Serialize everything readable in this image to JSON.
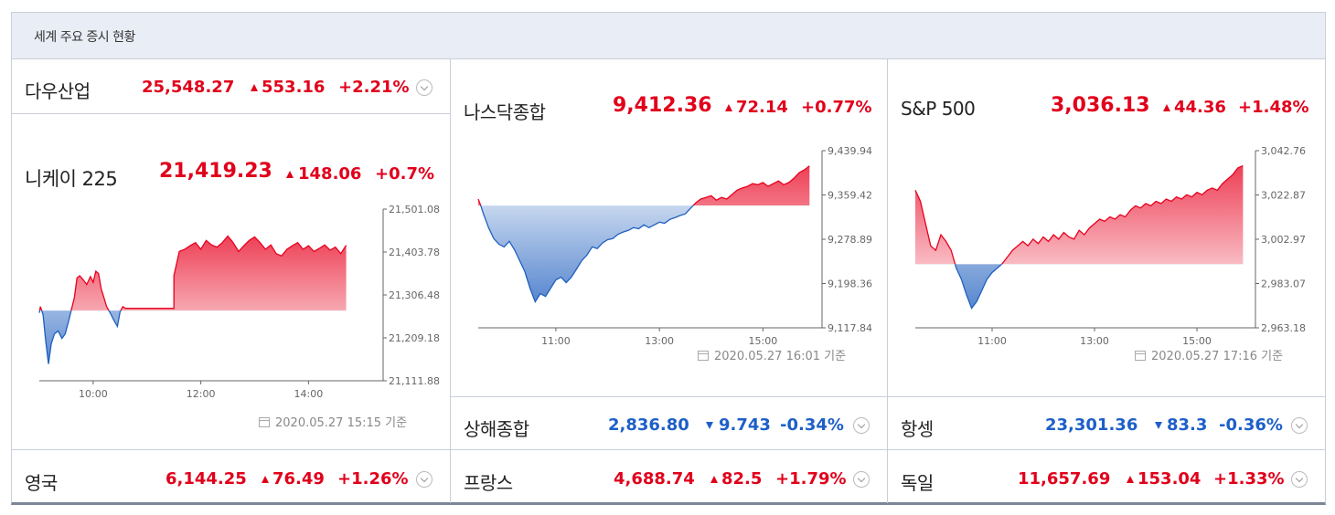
{
  "title": "세계 주요 증시 현황",
  "timestamp_suffix": "기준",
  "small": {
    "dow": {
      "name": "다우산업",
      "price": "25,548.27",
      "change": "553.16",
      "pct": "+2.21%",
      "dir": "up"
    },
    "shanghai": {
      "name": "상해종합",
      "price": "2,836.80",
      "change": "9.743",
      "pct": "-0.34%",
      "dir": "down"
    },
    "hangseng": {
      "name": "항셍",
      "price": "23,301.36",
      "change": "83.3",
      "pct": "-0.36%",
      "dir": "down"
    },
    "uk": {
      "name": "영국",
      "price": "6,144.25",
      "change": "76.49",
      "pct": "+1.26%",
      "dir": "up"
    },
    "france": {
      "name": "프랑스",
      "price": "4,688.74",
      "change": "82.5",
      "pct": "+1.79%",
      "dir": "up"
    },
    "germany": {
      "name": "독일",
      "price": "11,657.69",
      "change": "153.04",
      "pct": "+1.33%",
      "dir": "up"
    }
  },
  "big": {
    "nikkei": {
      "name": "니케이 225",
      "price": "21,419.23",
      "change": "148.06",
      "pct": "+0.7%",
      "dir": "up",
      "timestamp": "2020.05.27 15:15"
    },
    "nasdaq": {
      "name": "나스닥종합",
      "price": "9,412.36",
      "change": "72.14",
      "pct": "+0.77%",
      "dir": "up",
      "timestamp": "2020.05.27 16:01"
    },
    "sp500": {
      "name": "S&P 500",
      "price": "3,036.13",
      "change": "44.36",
      "pct": "+1.48%",
      "dir": "up",
      "timestamp": "2020.05.27 17:16"
    }
  },
  "chart_data": [
    {
      "type": "line",
      "id": "nikkei",
      "colors": {
        "up": "#e8001e",
        "down": "#1f5fbf"
      },
      "baseline": 21271.17,
      "ylim": [
        21111.88,
        21501.08
      ],
      "yticks": [
        "21,501.08",
        "21,403.78",
        "21,306.48",
        "21,209.18",
        "21,111.88"
      ],
      "xlim": [
        9.0,
        15.25
      ],
      "xticks": [
        {
          "x": 10,
          "label": "10:00"
        },
        {
          "x": 12,
          "label": "12:00"
        },
        {
          "x": 14,
          "label": "14:00"
        }
      ],
      "points": [
        [
          9.0,
          21266
        ],
        [
          9.02,
          21280
        ],
        [
          9.07,
          21262
        ],
        [
          9.12,
          21200
        ],
        [
          9.17,
          21150
        ],
        [
          9.22,
          21195
        ],
        [
          9.28,
          21218
        ],
        [
          9.35,
          21225
        ],
        [
          9.42,
          21208
        ],
        [
          9.48,
          21218
        ],
        [
          9.55,
          21250
        ],
        [
          9.6,
          21275
        ],
        [
          9.65,
          21300
        ],
        [
          9.7,
          21345
        ],
        [
          9.75,
          21350
        ],
        [
          9.82,
          21340
        ],
        [
          9.88,
          21330
        ],
        [
          9.95,
          21348
        ],
        [
          10.0,
          21335
        ],
        [
          10.05,
          21360
        ],
        [
          10.1,
          21355
        ],
        [
          10.15,
          21320
        ],
        [
          10.2,
          21300
        ],
        [
          10.25,
          21280
        ],
        [
          10.32,
          21265
        ],
        [
          10.38,
          21250
        ],
        [
          10.45,
          21235
        ],
        [
          10.5,
          21268
        ],
        [
          10.55,
          21280
        ],
        [
          10.6,
          21276
        ],
        [
          10.8,
          21276
        ],
        [
          11.0,
          21276
        ],
        [
          11.2,
          21276
        ],
        [
          11.4,
          21276
        ],
        [
          11.5,
          21276
        ],
        [
          11.5,
          21350
        ],
        [
          11.6,
          21405
        ],
        [
          11.7,
          21410
        ],
        [
          11.8,
          21418
        ],
        [
          11.9,
          21425
        ],
        [
          12.0,
          21410
        ],
        [
          12.1,
          21430
        ],
        [
          12.2,
          21420
        ],
        [
          12.3,
          21415
        ],
        [
          12.4,
          21425
        ],
        [
          12.5,
          21440
        ],
        [
          12.6,
          21425
        ],
        [
          12.7,
          21405
        ],
        [
          12.8,
          21418
        ],
        [
          12.9,
          21430
        ],
        [
          13.0,
          21438
        ],
        [
          13.1,
          21425
        ],
        [
          13.2,
          21410
        ],
        [
          13.3,
          21420
        ],
        [
          13.4,
          21400
        ],
        [
          13.5,
          21395
        ],
        [
          13.6,
          21410
        ],
        [
          13.7,
          21418
        ],
        [
          13.8,
          21425
        ],
        [
          13.9,
          21410
        ],
        [
          14.0,
          21418
        ],
        [
          14.1,
          21405
        ],
        [
          14.2,
          21412
        ],
        [
          14.3,
          21420
        ],
        [
          14.4,
          21408
        ],
        [
          14.5,
          21415
        ],
        [
          14.6,
          21400
        ],
        [
          14.7,
          21419
        ]
      ]
    },
    {
      "type": "line",
      "id": "nasdaq",
      "colors": {
        "up": "#e8001e",
        "down": "#1f5fbf"
      },
      "baseline": 9340.22,
      "ylim": [
        9117.84,
        9439.94
      ],
      "yticks": [
        "9,439.94",
        "9,359.42",
        "9,278.89",
        "9,198.36",
        "9,117.84"
      ],
      "xlim": [
        9.5,
        16.0
      ],
      "xticks": [
        {
          "x": 11,
          "label": "11:00"
        },
        {
          "x": 13,
          "label": "13:00"
        },
        {
          "x": 15,
          "label": "15:00"
        }
      ],
      "points": [
        [
          9.5,
          9352
        ],
        [
          9.55,
          9340
        ],
        [
          9.6,
          9325
        ],
        [
          9.7,
          9300
        ],
        [
          9.8,
          9280
        ],
        [
          9.9,
          9270
        ],
        [
          10.0,
          9265
        ],
        [
          10.1,
          9275
        ],
        [
          10.2,
          9260
        ],
        [
          10.3,
          9240
        ],
        [
          10.4,
          9220
        ],
        [
          10.5,
          9190
        ],
        [
          10.6,
          9165
        ],
        [
          10.7,
          9180
        ],
        [
          10.8,
          9175
        ],
        [
          10.9,
          9190
        ],
        [
          11.0,
          9205
        ],
        [
          11.1,
          9210
        ],
        [
          11.2,
          9200
        ],
        [
          11.3,
          9210
        ],
        [
          11.4,
          9225
        ],
        [
          11.5,
          9240
        ],
        [
          11.6,
          9250
        ],
        [
          11.7,
          9265
        ],
        [
          11.8,
          9262
        ],
        [
          11.9,
          9272
        ],
        [
          12.0,
          9278
        ],
        [
          12.1,
          9280
        ],
        [
          12.2,
          9288
        ],
        [
          12.3,
          9292
        ],
        [
          12.4,
          9295
        ],
        [
          12.5,
          9300
        ],
        [
          12.6,
          9298
        ],
        [
          12.7,
          9305
        ],
        [
          12.8,
          9300
        ],
        [
          12.9,
          9305
        ],
        [
          13.0,
          9310
        ],
        [
          13.1,
          9308
        ],
        [
          13.2,
          9315
        ],
        [
          13.3,
          9318
        ],
        [
          13.4,
          9322
        ],
        [
          13.5,
          9325
        ],
        [
          13.6,
          9335
        ],
        [
          13.7,
          9345
        ],
        [
          13.8,
          9352
        ],
        [
          13.9,
          9355
        ],
        [
          14.0,
          9358
        ],
        [
          14.1,
          9350
        ],
        [
          14.2,
          9355
        ],
        [
          14.3,
          9352
        ],
        [
          14.4,
          9360
        ],
        [
          14.5,
          9368
        ],
        [
          14.6,
          9372
        ],
        [
          14.7,
          9375
        ],
        [
          14.8,
          9380
        ],
        [
          14.9,
          9378
        ],
        [
          15.0,
          9382
        ],
        [
          15.1,
          9375
        ],
        [
          15.2,
          9380
        ],
        [
          15.3,
          9385
        ],
        [
          15.4,
          9378
        ],
        [
          15.5,
          9382
        ],
        [
          15.6,
          9390
        ],
        [
          15.7,
          9400
        ],
        [
          15.8,
          9405
        ],
        [
          15.9,
          9412
        ]
      ]
    },
    {
      "type": "line",
      "id": "sp500",
      "colors": {
        "up": "#e8001e",
        "down": "#1f5fbf"
      },
      "baseline": 2991.77,
      "ylim": [
        2963.18,
        3042.76
      ],
      "yticks": [
        "3,042.76",
        "3,022.87",
        "3,002.97",
        "2,983.07",
        "2,963.18"
      ],
      "xlim": [
        9.5,
        16.0
      ],
      "xticks": [
        {
          "x": 11,
          "label": "11:00"
        },
        {
          "x": 13,
          "label": "13:00"
        },
        {
          "x": 15,
          "label": "15:00"
        }
      ],
      "points": [
        [
          9.5,
          3025
        ],
        [
          9.6,
          3020
        ],
        [
          9.7,
          3010
        ],
        [
          9.8,
          3000
        ],
        [
          9.9,
          2998
        ],
        [
          10.0,
          3005
        ],
        [
          10.1,
          3002
        ],
        [
          10.2,
          2998
        ],
        [
          10.3,
          2990
        ],
        [
          10.4,
          2985
        ],
        [
          10.5,
          2978
        ],
        [
          10.6,
          2972
        ],
        [
          10.7,
          2975
        ],
        [
          10.8,
          2980
        ],
        [
          10.9,
          2985
        ],
        [
          11.0,
          2988
        ],
        [
          11.1,
          2990
        ],
        [
          11.2,
          2992
        ],
        [
          11.3,
          2995
        ],
        [
          11.4,
          2998
        ],
        [
          11.5,
          3000
        ],
        [
          11.6,
          3002
        ],
        [
          11.7,
          3000
        ],
        [
          11.8,
          3003
        ],
        [
          11.9,
          3001
        ],
        [
          12.0,
          3004
        ],
        [
          12.1,
          3002
        ],
        [
          12.2,
          3005
        ],
        [
          12.3,
          3003
        ],
        [
          12.4,
          3006
        ],
        [
          12.5,
          3004
        ],
        [
          12.6,
          3003
        ],
        [
          12.7,
          3007
        ],
        [
          12.8,
          3005
        ],
        [
          12.9,
          3008
        ],
        [
          13.0,
          3010
        ],
        [
          13.1,
          3012
        ],
        [
          13.2,
          3011
        ],
        [
          13.3,
          3013
        ],
        [
          13.4,
          3012
        ],
        [
          13.5,
          3014
        ],
        [
          13.6,
          3013
        ],
        [
          13.7,
          3016
        ],
        [
          13.8,
          3018
        ],
        [
          13.9,
          3017
        ],
        [
          14.0,
          3019
        ],
        [
          14.1,
          3018
        ],
        [
          14.2,
          3020
        ],
        [
          14.3,
          3019
        ],
        [
          14.4,
          3021
        ],
        [
          14.5,
          3020
        ],
        [
          14.6,
          3022
        ],
        [
          14.7,
          3021
        ],
        [
          14.8,
          3023
        ],
        [
          14.9,
          3022
        ],
        [
          15.0,
          3024
        ],
        [
          15.1,
          3023
        ],
        [
          15.2,
          3025
        ],
        [
          15.3,
          3026
        ],
        [
          15.4,
          3025
        ],
        [
          15.5,
          3028
        ],
        [
          15.6,
          3030
        ],
        [
          15.7,
          3032
        ],
        [
          15.8,
          3035
        ],
        [
          15.9,
          3036
        ]
      ]
    }
  ]
}
